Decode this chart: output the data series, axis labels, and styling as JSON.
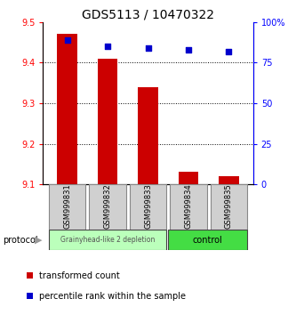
{
  "title": "GDS5113 / 10470322",
  "samples": [
    "GSM999831",
    "GSM999832",
    "GSM999833",
    "GSM999834",
    "GSM999835"
  ],
  "bar_values": [
    9.47,
    9.41,
    9.34,
    9.13,
    9.12
  ],
  "scatter_values": [
    89,
    85,
    84,
    83,
    82
  ],
  "ylim_left": [
    9.1,
    9.5
  ],
  "ylim_right": [
    0,
    100
  ],
  "yticks_left": [
    9.1,
    9.2,
    9.3,
    9.4,
    9.5
  ],
  "yticks_right": [
    0,
    25,
    50,
    75,
    100
  ],
  "ytick_labels_right": [
    "0",
    "25",
    "50",
    "75",
    "100%"
  ],
  "bar_color": "#cc0000",
  "scatter_color": "#0000cc",
  "bar_width": 0.5,
  "group1_label": "Grainyhead-like 2 depletion",
  "group2_label": "control",
  "group1_color": "#bbffbb",
  "group2_color": "#44dd44",
  "protocol_label": "protocol",
  "legend_bar_label": "transformed count",
  "legend_scatter_label": "percentile rank within the sample",
  "title_fontsize": 10,
  "tick_fontsize": 7,
  "sample_fontsize": 6
}
